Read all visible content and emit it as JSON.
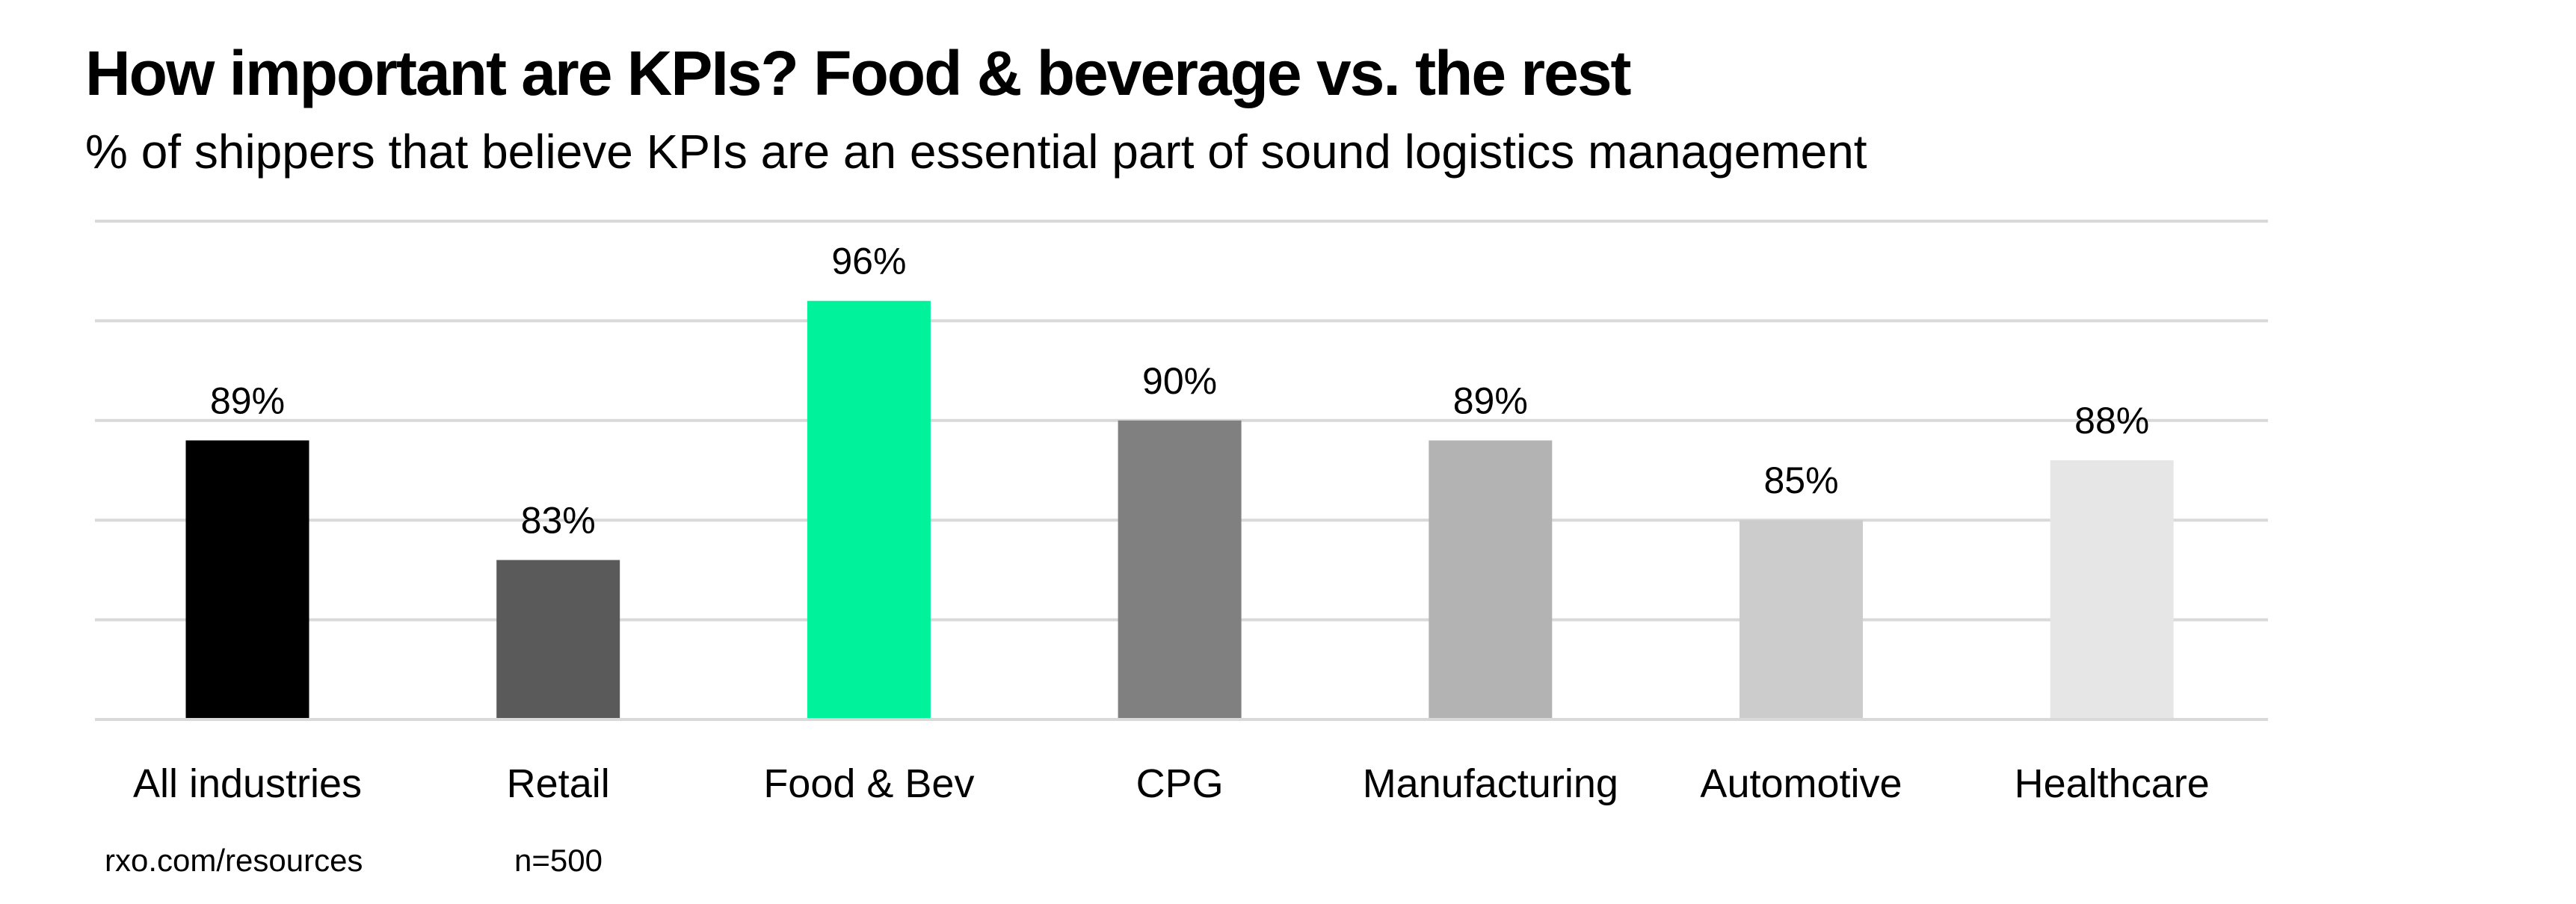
{
  "chart_data": {
    "type": "bar",
    "title": "How important are KPIs? Food & beverage vs. the rest",
    "subtitle": "% of shippers that believe KPIs are an essential part of sound logistics management",
    "categories": [
      "All industries",
      "Retail",
      "Food & Bev",
      "CPG",
      "Manufacturing",
      "Automotive",
      "Healthcare"
    ],
    "values": [
      89,
      83,
      96,
      90,
      89,
      85,
      88
    ],
    "data_labels": [
      "89%",
      "83%",
      "96%",
      "90%",
      "89%",
      "85%",
      "88%"
    ],
    "colors": [
      "#000000",
      "#5a5a5a",
      "#00f29a",
      "#808080",
      "#b3b3b3",
      "#cccccc",
      "#e6e6e6"
    ],
    "xlabel": "",
    "ylabel": "",
    "ylim": [
      75,
      100
    ],
    "grid_step": 5,
    "grid": true,
    "y_tick_labels_shown": false,
    "legend": "none"
  },
  "footer": {
    "source": "rxo.com/resources",
    "sample": "n=500"
  }
}
